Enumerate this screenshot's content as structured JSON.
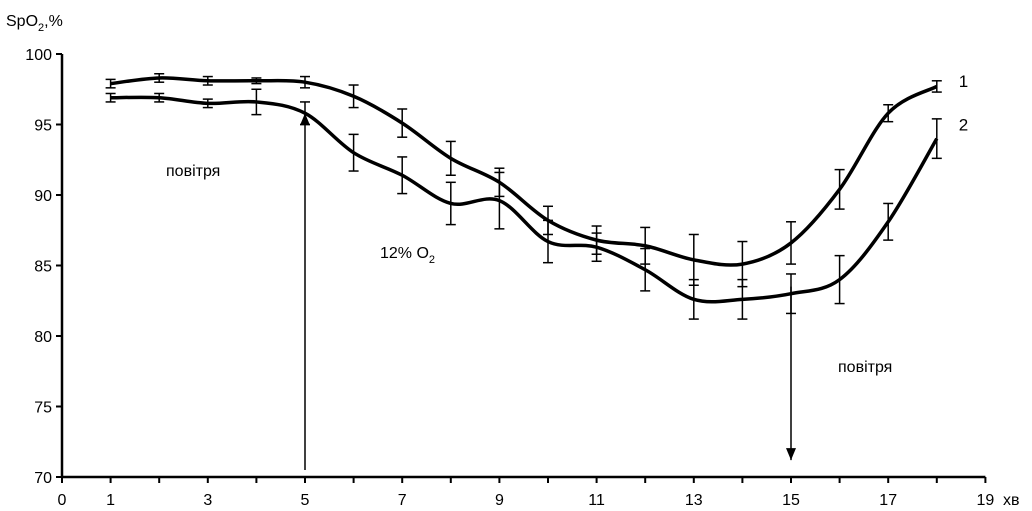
{
  "chart_data": {
    "type": "line",
    "ylabel_main": "SpO",
    "ylabel_sub": "2",
    "ylabel_tail": ",%",
    "xlabel": "хв",
    "xlim": [
      0,
      19
    ],
    "ylim": [
      70,
      100
    ],
    "x_ticks": [
      0,
      1,
      3,
      5,
      7,
      9,
      11,
      13,
      15,
      17,
      19
    ],
    "y_ticks": [
      70,
      75,
      80,
      85,
      90,
      95,
      100
    ],
    "x": [
      1,
      2,
      3,
      4,
      5,
      6,
      7,
      8,
      9,
      10,
      11,
      12,
      13,
      14,
      15,
      16,
      17,
      18
    ],
    "series": [
      {
        "name": "1",
        "values": [
          97.9,
          98.3,
          98.1,
          98.1,
          98.0,
          97.0,
          95.1,
          92.6,
          90.9,
          88.2,
          86.8,
          86.4,
          85.4,
          85.1,
          86.6,
          90.4,
          95.8,
          97.7
        ],
        "errors": [
          0.3,
          0.3,
          0.3,
          0.2,
          0.4,
          0.8,
          1.0,
          1.2,
          1.0,
          1.0,
          1.0,
          1.3,
          1.8,
          1.6,
          1.5,
          1.4,
          0.6,
          0.4
        ]
      },
      {
        "name": "2",
        "values": [
          96.9,
          96.9,
          96.5,
          96.6,
          95.8,
          93.0,
          91.4,
          89.4,
          89.6,
          86.7,
          86.3,
          84.7,
          82.6,
          82.6,
          83.0,
          84.0,
          88.1,
          94.0
        ],
        "errors": [
          0.3,
          0.3,
          0.3,
          0.9,
          0.8,
          1.3,
          1.3,
          1.5,
          2.0,
          1.5,
          1.0,
          1.5,
          1.4,
          1.4,
          1.4,
          1.7,
          1.3,
          1.4
        ]
      }
    ],
    "annotations": {
      "air_before": "повітря",
      "hypoxia_text": "12% O",
      "hypoxia_sub": "2",
      "air_after": "повітря"
    },
    "arrows": [
      {
        "x": 5,
        "y_from": 70.5,
        "y_to": 95.8,
        "direction": "up"
      },
      {
        "x": 15,
        "y_from": 83.5,
        "y_to": 71.2,
        "direction": "down"
      }
    ],
    "grid": false,
    "legend": "inline labels at right end of lines"
  }
}
